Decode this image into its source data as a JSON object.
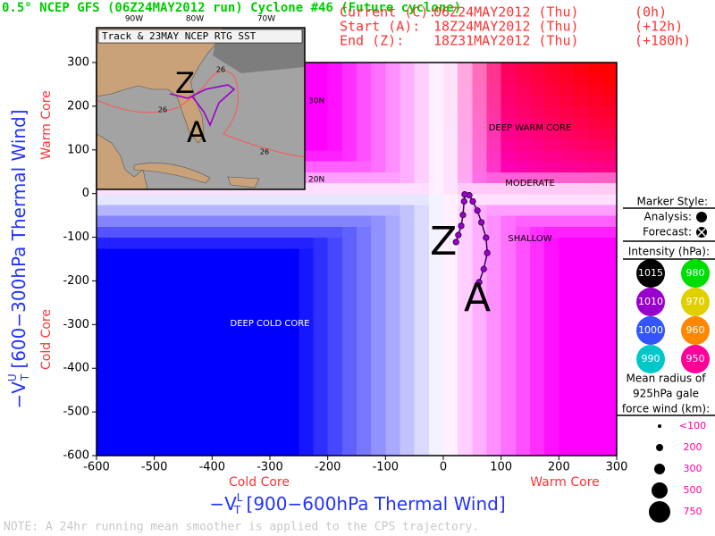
{
  "chart_data": {
    "type": "line",
    "title": "0.5° NCEP GFS (06Z24MAY2012 run) Cyclone #46 (Future cyclone)",
    "info": [
      [
        "Current (C):",
        "06Z24MAY2012 (Thu)",
        "(0h)"
      ],
      [
        "Start (A):",
        "18Z24MAY2012 (Thu)",
        "(+12h)"
      ],
      [
        "End (Z):",
        "18Z31MAY2012 (Thu)",
        "(+180h)"
      ]
    ],
    "x_label": {
      "symbol": "−V",
      "sub": "T",
      "sup": "L",
      "text": " [900−600hPa Thermal Wind]"
    },
    "y_label": {
      "symbol": "−V",
      "sub": "T",
      "sup": "U",
      "text": " [600−300hPa Thermal Wind]"
    },
    "x_core_labels": [
      "Cold Core",
      "Warm Core"
    ],
    "y_core_labels": [
      "Warm Core",
      "Cold Core"
    ],
    "regions": [
      "DEEP WARM CORE",
      "MODERATE",
      "SHALLOW",
      "DEEP COLD CORE"
    ],
    "xlim": [
      -600,
      300
    ],
    "ylim": [
      -600,
      300
    ],
    "xticks": [
      -600,
      -500,
      -400,
      -300,
      -200,
      -100,
      0,
      100,
      200,
      300
    ],
    "yticks": [
      -600,
      -500,
      -400,
      -300,
      -200,
      -100,
      0,
      100,
      200,
      300
    ],
    "x": [
      62,
      70,
      76,
      74,
      66,
      59,
      51,
      45,
      37,
      36,
      34,
      31,
      26,
      22
    ],
    "series": [
      {
        "color": "#9900cc",
        "values": [
          -203,
          -173,
          -136,
          -101,
          -66,
          -39,
          -18,
          -4,
          -2,
          -18,
          -49,
          -74,
          -95,
          -111
        ]
      }
    ],
    "start_label": "A",
    "end_label": "Z",
    "note": "NOTE:  A 24hr running mean smoother is applied to the CPS trajectory."
  },
  "inset": {
    "title": "Track & 23MAY NCEP RTG SST",
    "lon_labels": [
      "90W",
      "80W",
      "70W"
    ],
    "lat_labels": [
      "30N",
      "20N"
    ],
    "sst_labels": [
      "26",
      "26",
      "26"
    ],
    "track_labels": [
      "Z",
      "A"
    ]
  },
  "legend": {
    "marker_title": "Marker Style:",
    "analysis": "Analysis:",
    "forecast": "Forecast:",
    "intensity_title": "Intensity (hPa):",
    "intensity": [
      {
        "label": "1015",
        "color": "#000000"
      },
      {
        "label": "980",
        "color": "#00dd00"
      },
      {
        "label": "1010",
        "color": "#9900cc"
      },
      {
        "label": "970",
        "color": "#e0d000"
      },
      {
        "label": "1000",
        "color": "#3355ff"
      },
      {
        "label": "960",
        "color": "#ff8800"
      },
      {
        "label": "990",
        "color": "#00c8c8"
      },
      {
        "label": "950",
        "color": "#ff0099"
      }
    ],
    "size_title": [
      "Mean radius of",
      "925hPa gale",
      "force wind (km):"
    ],
    "sizes": [
      "<100",
      "200",
      "300",
      "500",
      "750"
    ]
  }
}
